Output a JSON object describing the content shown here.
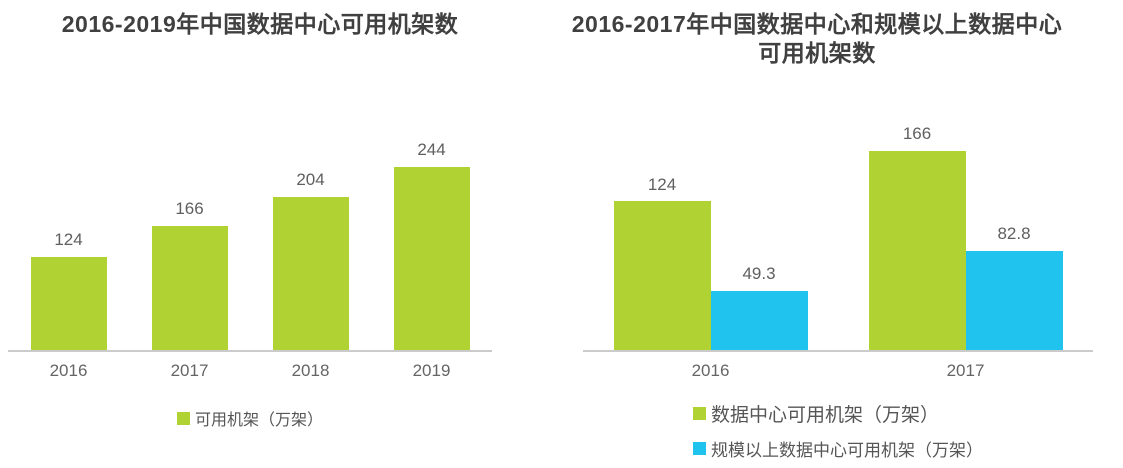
{
  "colors": {
    "bar_green": "#b1d233",
    "bar_blue": "#20c3ee",
    "title_text": "#404040",
    "label_text": "#5f5f5f",
    "axis_line": "#cbcbcb",
    "background": "#ffffff"
  },
  "chart_data": [
    {
      "type": "bar",
      "title": "2016-2019年中国数据中心可用机架数",
      "title_lines": [
        "2016-2019年中国数据中心可用机架数"
      ],
      "categories": [
        "2016",
        "2017",
        "2018",
        "2019"
      ],
      "series": [
        {
          "name": "可用机架（万架）",
          "color": "#b1d233",
          "values": [
            124,
            166,
            204,
            244
          ]
        }
      ],
      "ylim": [
        0,
        260
      ],
      "grid": false,
      "legend_position": "bottom",
      "value_labels_shown": true
    },
    {
      "type": "bar",
      "title": "2016-2017年中国数据中心和规模以上数据中心可用机架数",
      "title_lines": [
        "2016-2017年中国数据中心和规模以上数据中心",
        "可用机架数"
      ],
      "categories": [
        "2016",
        "2017"
      ],
      "series": [
        {
          "name": "数据中心可用机架（万架）",
          "color": "#b1d233",
          "values": [
            124,
            166
          ]
        },
        {
          "name": "规模以上数据中心可用机架（万架）",
          "color": "#20c3ee",
          "values": [
            49.3,
            82.8
          ]
        }
      ],
      "ylim": [
        0,
        175
      ],
      "grid": false,
      "legend_position": "bottom",
      "value_labels_shown": true
    }
  ]
}
